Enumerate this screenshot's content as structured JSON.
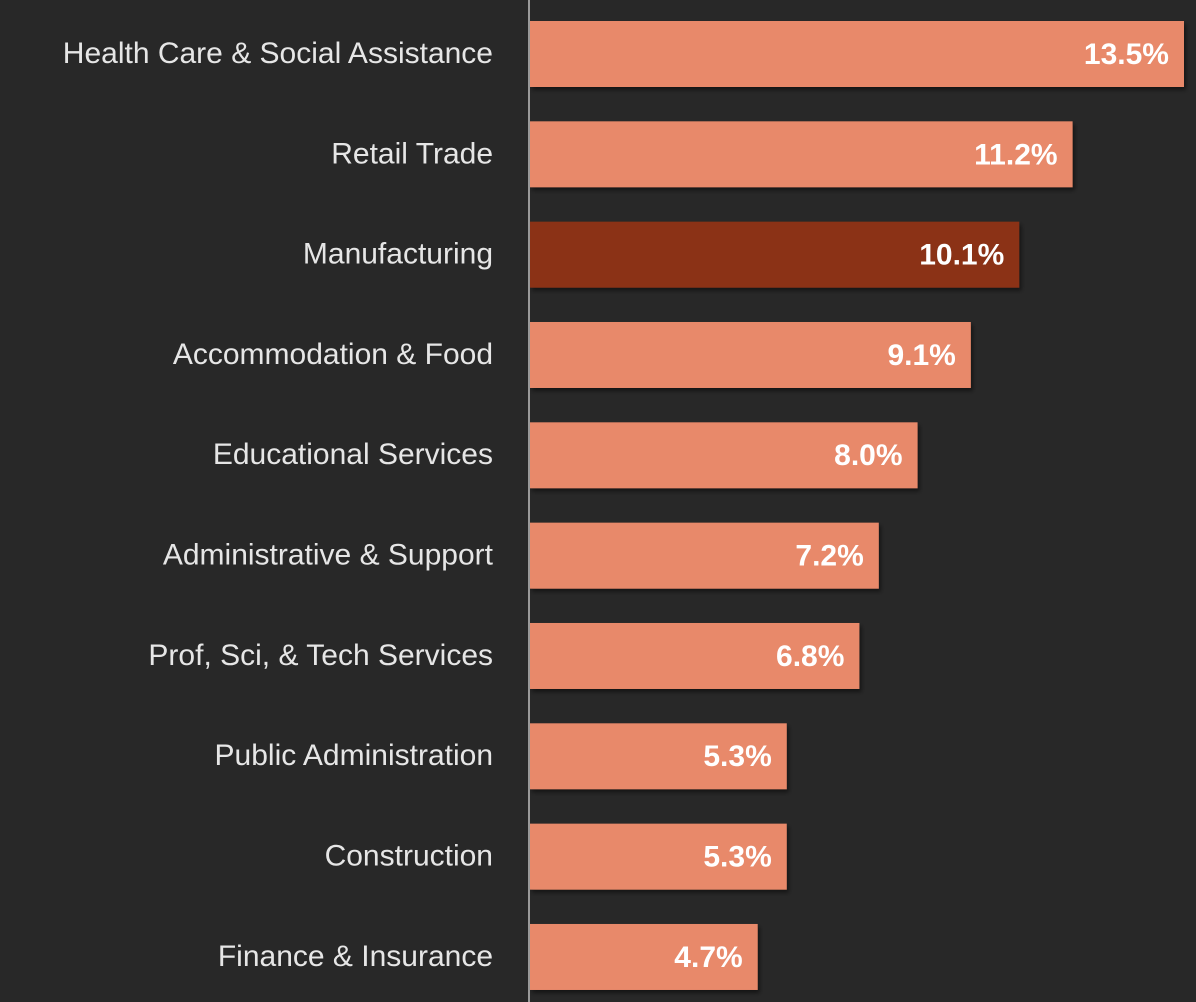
{
  "chart_data": {
    "type": "bar",
    "orientation": "horizontal",
    "categories": [
      "Health Care & Social Assistance",
      "Retail Trade",
      "Manufacturing",
      "Accommodation & Food",
      "Educational Services",
      "Administrative & Support",
      "Prof, Sci, & Tech Services",
      "Public Administration",
      "Construction",
      "Finance & Insurance"
    ],
    "values": [
      13.5,
      11.2,
      10.1,
      9.1,
      8.0,
      7.2,
      6.8,
      5.3,
      5.3,
      4.7
    ],
    "value_labels": [
      "13.5%",
      "11.2%",
      "10.1%",
      "9.1%",
      "8.0%",
      "7.2%",
      "6.8%",
      "5.3%",
      "5.3%",
      "4.7%"
    ],
    "colors": [
      "#e8896a",
      "#e8896a",
      "#8b3214",
      "#e8896a",
      "#e8896a",
      "#e8896a",
      "#e8896a",
      "#e8896a",
      "#e8896a",
      "#e8896a"
    ]
  }
}
